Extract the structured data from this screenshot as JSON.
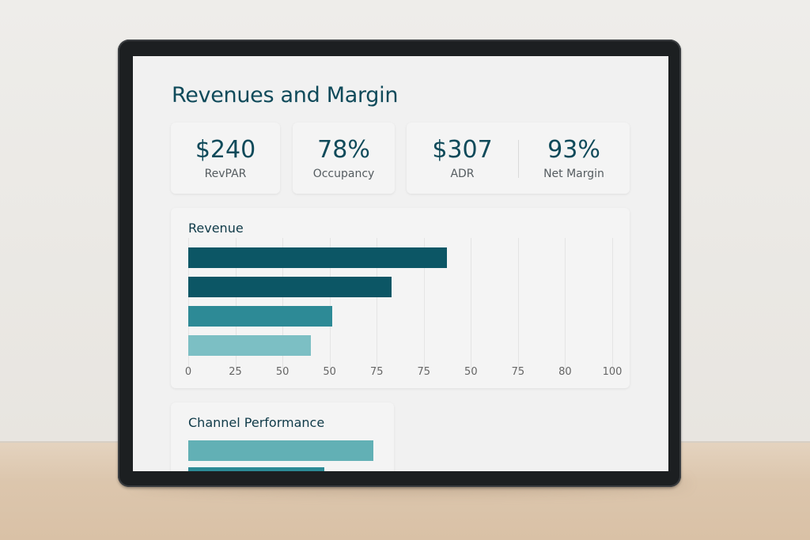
{
  "dashboard": {
    "title": "Revenues and Margin",
    "kpis": [
      {
        "value": "$240",
        "label": "RevPAR"
      },
      {
        "value": "78%",
        "label": "Occupancy"
      },
      {
        "value": "$307",
        "label": "ADR"
      },
      {
        "value": "93%",
        "label": "Net Margin"
      }
    ]
  },
  "chart_data": [
    {
      "type": "bar",
      "orientation": "horizontal",
      "title": "Revenue",
      "categories": [
        "",
        "",
        "",
        ""
      ],
      "values": [
        61,
        48,
        34,
        29
      ],
      "colors": [
        "#0c5665",
        "#0c5665",
        "#2d8a96",
        "#7cbfc4"
      ],
      "x_ticks": [
        "0",
        "25",
        "50",
        "50",
        "75",
        "75",
        "50",
        "75",
        "80",
        "100"
      ],
      "xlim": [
        0,
        100
      ],
      "grid": true
    },
    {
      "type": "bar",
      "orientation": "horizontal",
      "title": "Channel Performance",
      "values": [
        90,
        66
      ],
      "colors": [
        "#62b0b5",
        "#2d8a96"
      ]
    }
  ]
}
